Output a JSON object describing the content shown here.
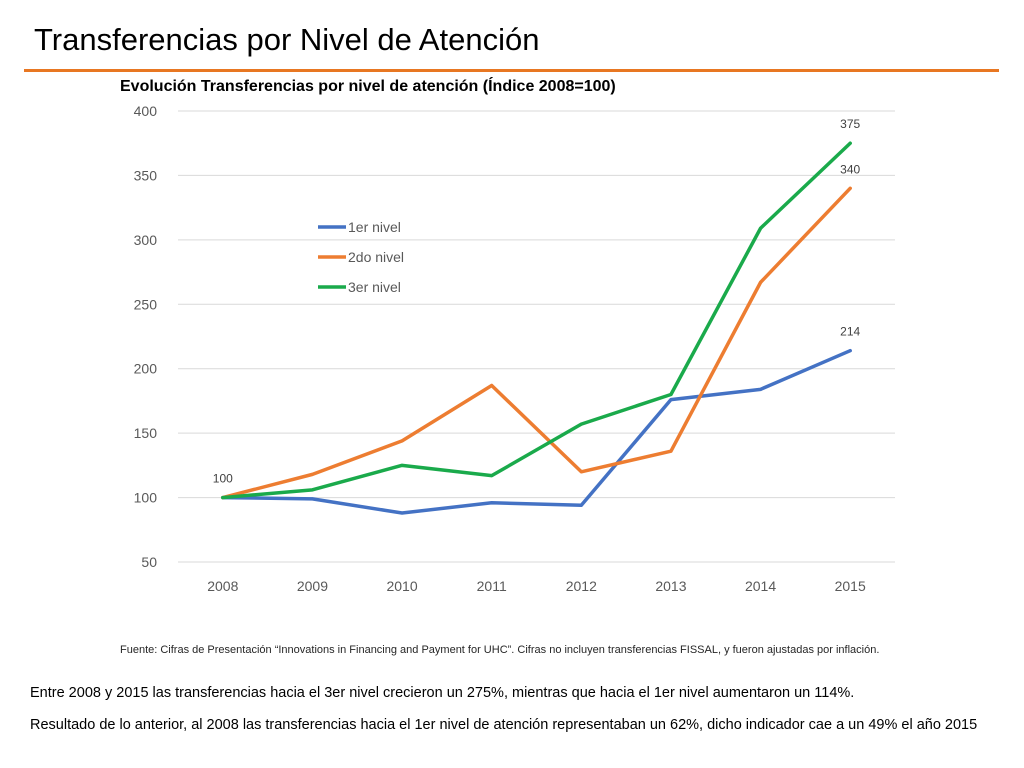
{
  "slide": {
    "title": "Transferencias por Nivel de Atención",
    "accent_color": "#e87722",
    "source_note": "Fuente: Cifras de Presentación “Innovations in Financing and Payment for UHC”. Cifras no incluyen transferencias FISSAL, y fueron ajustadas por inflación.",
    "paragraph_1": "Entre 2008 y 2015 las transferencias hacia el 3er nivel crecieron un 275%, mientras que hacia el 1er nivel aumentaron un 114%.",
    "paragraph_2": "Resultado de lo anterior, al 2008 las transferencias hacia el 1er nivel de atención representaban un 62%, dicho indicador cae a un 49% el año 2015"
  },
  "chart_data": {
    "type": "line",
    "title": "Evolución Transferencias por nivel de atención (Índice 2008=100)",
    "xlabel": "",
    "ylabel": "",
    "categories": [
      "2008",
      "2009",
      "2010",
      "2011",
      "2012",
      "2013",
      "2014",
      "2015"
    ],
    "ylim": [
      50,
      400
    ],
    "yticks": [
      50,
      100,
      150,
      200,
      250,
      300,
      350,
      400
    ],
    "grid": true,
    "legend_position": "upper-left",
    "series": [
      {
        "name": "1er nivel",
        "color": "#4472c4",
        "values": [
          100,
          99,
          88,
          96,
          94,
          176,
          184,
          214
        ]
      },
      {
        "name": "2do nivel",
        "color": "#ed7d31",
        "values": [
          100,
          118,
          144,
          187,
          120,
          136,
          267,
          340
        ]
      },
      {
        "name": "3er nivel",
        "color": "#1aaa4b",
        "values": [
          100,
          106,
          125,
          117,
          157,
          180,
          309,
          375
        ]
      }
    ],
    "data_labels": [
      {
        "series": 0,
        "index": 0,
        "text": "100"
      },
      {
        "series": 0,
        "index": 7,
        "text": "214"
      },
      {
        "series": 1,
        "index": 7,
        "text": "340"
      },
      {
        "series": 2,
        "index": 7,
        "text": "375"
      }
    ]
  }
}
